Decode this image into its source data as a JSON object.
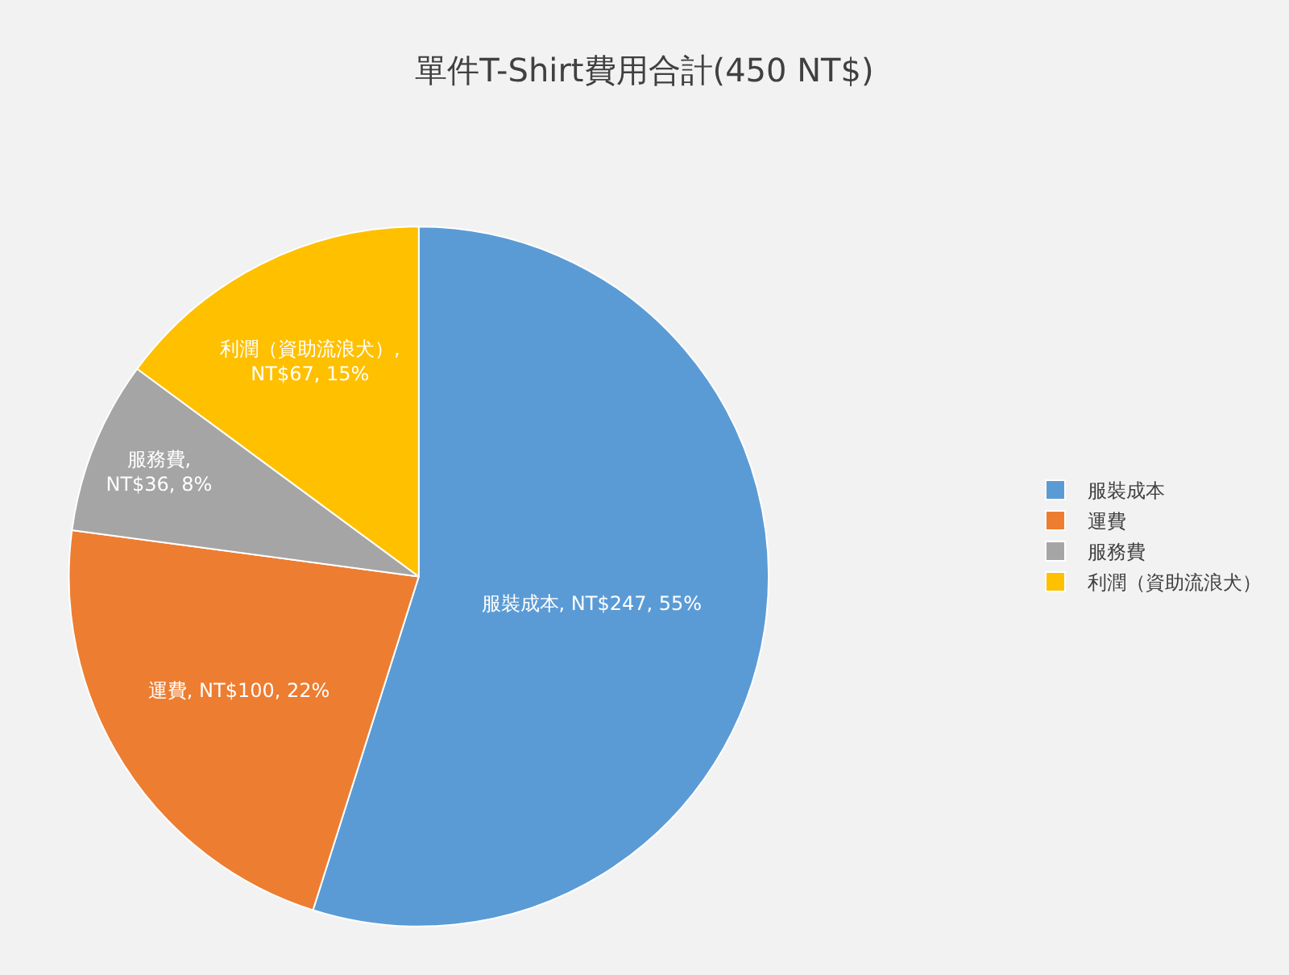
{
  "chart_data": {
    "type": "pie",
    "title": "單件T-Shirt費用合計(450 NT$)",
    "categories": [
      "服裝成本",
      "運費",
      "服務費",
      "利潤（資助流浪犬）"
    ],
    "values": [
      247,
      100,
      36,
      67
    ],
    "colors": [
      "#5b9bd5",
      "#ed7d31",
      "#a5a5a5",
      "#ffc000"
    ],
    "value_labels": [
      "服裝成本, NT$247, 55%",
      "運費, NT$100, 22%",
      "服務費,\nNT$36, 8%",
      "利潤（資助流浪犬）,\nNT$67, 15%"
    ],
    "legend": "right"
  }
}
